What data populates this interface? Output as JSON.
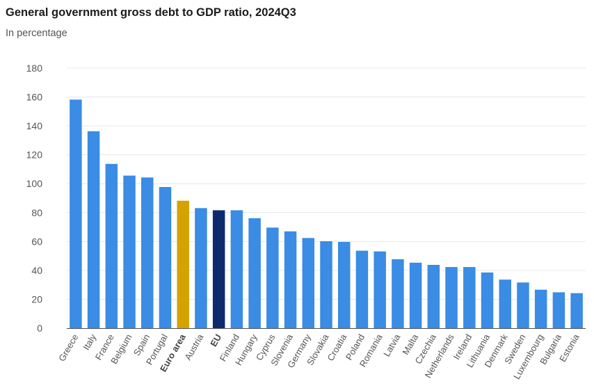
{
  "chart_data": {
    "type": "bar",
    "title": "General government gross debt to GDP ratio, 2024Q3",
    "subtitle": "In percentage",
    "xlabel": "",
    "ylabel": "",
    "ylim": [
      0,
      180
    ],
    "yticks": [
      0,
      20,
      40,
      60,
      80,
      100,
      120,
      140,
      160,
      180
    ],
    "grid": true,
    "categories": [
      "Greece",
      "Italy",
      "France",
      "Belgium",
      "Spain",
      "Portugal",
      "Euro area",
      "Austria",
      "EU",
      "Finland",
      "Hungary",
      "Cyprus",
      "Slovenia",
      "Germany",
      "Slovakia",
      "Croatia",
      "Poland",
      "Romania",
      "Latvia",
      "Malta",
      "Czechia",
      "Netherlands",
      "Ireland",
      "Lithuania",
      "Denmark",
      "Sweden",
      "Luxembourg",
      "Bulgaria",
      "Estonia"
    ],
    "values": [
      158.2,
      136.3,
      113.7,
      105.6,
      104.3,
      97.7,
      88.2,
      83.1,
      81.6,
      81.6,
      76.1,
      69.6,
      67.0,
      62.4,
      60.2,
      59.7,
      53.6,
      53.1,
      47.7,
      45.3,
      43.8,
      42.3,
      42.3,
      38.5,
      33.6,
      31.6,
      26.6,
      24.8,
      24.2
    ],
    "highlight": {
      "Euro area": "#d4a300",
      "EU": "#0e2a6f"
    },
    "bold_categories": [
      "Euro area",
      "EU"
    ],
    "colors": {
      "default_bar": "#3a8ce4",
      "grid": "#e3e7ee",
      "axis": "#4d4d4d"
    }
  }
}
